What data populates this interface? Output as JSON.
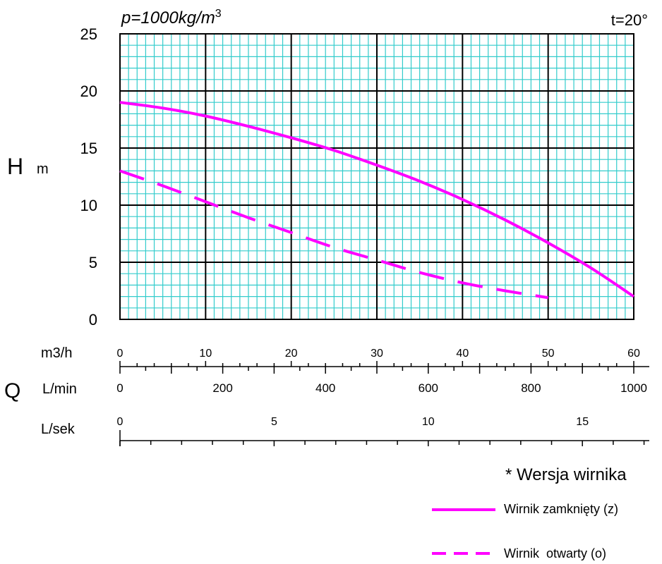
{
  "chart_data": {
    "type": "line",
    "density_label": "p=1000kg/m",
    "density_sup": "3",
    "temperature_label": "t=20°",
    "y_axis": {
      "label": "H",
      "unit": "m",
      "ticks": [
        "25",
        "20",
        "15",
        "10",
        "5",
        "0"
      ],
      "ylim": [
        0,
        25
      ]
    },
    "x_axis_group_label": "Q",
    "x_axes": [
      {
        "unit": "m3/h",
        "ticks": [
          "0",
          "10",
          "20",
          "30",
          "40",
          "50",
          "60"
        ],
        "range": [
          0,
          60
        ]
      },
      {
        "unit": "L/min",
        "ticks": [
          "0",
          "200",
          "400",
          "600",
          "800",
          "1000"
        ],
        "range": [
          0,
          1000
        ]
      },
      {
        "unit": "L/sek",
        "ticks": [
          "0",
          "5",
          "10",
          "15"
        ],
        "range": [
          0,
          17.3
        ]
      }
    ],
    "xlim": [
      0,
      60
    ],
    "grid": true,
    "colors": {
      "grid_minor": "#33cccc",
      "grid_major": "#000000",
      "series": "#ff00ff"
    },
    "series": [
      {
        "name": "Wirnik zamknięty (z)",
        "style": "solid",
        "x": [
          0,
          5,
          10,
          15,
          20,
          25,
          30,
          35,
          40,
          45,
          50,
          55,
          60
        ],
        "y": [
          19.0,
          18.5,
          17.8,
          16.9,
          15.9,
          14.8,
          13.5,
          12.1,
          10.5,
          8.7,
          6.7,
          4.5,
          2.0
        ]
      },
      {
        "name": "Wirnik  otwarty (o)",
        "style": "dashed",
        "x": [
          0,
          5,
          10,
          15,
          20,
          25,
          30,
          35,
          40,
          45,
          50
        ],
        "y": [
          13.0,
          11.7,
          10.3,
          8.9,
          7.6,
          6.3,
          5.2,
          4.1,
          3.2,
          2.5,
          1.9
        ]
      }
    ]
  },
  "legend": {
    "heading": "* Wersja wirnika"
  }
}
